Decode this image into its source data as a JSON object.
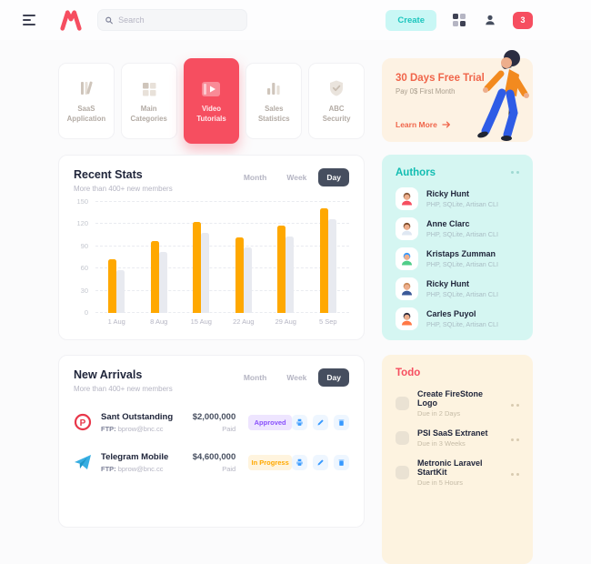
{
  "header": {
    "search_placeholder": "Search",
    "create_label": "Create",
    "notification_count": "3",
    "icons": [
      "hamburger-icon",
      "logo-m-icon",
      "search-icon",
      "grid-icon",
      "user-icon"
    ]
  },
  "categories": [
    {
      "label": "SaaS Application",
      "icon": "books-icon",
      "active": false
    },
    {
      "label": "Main Categories",
      "icon": "grid-tiles-icon",
      "active": false
    },
    {
      "label": "Video Tutorials",
      "icon": "video-icon",
      "active": true
    },
    {
      "label": "Sales Statistics",
      "icon": "bar-chart-icon",
      "active": false
    },
    {
      "label": "ABC Security",
      "icon": "shield-check-icon",
      "active": false
    }
  ],
  "trial_card": {
    "title": "30 Days Free Trial",
    "subtitle": "Pay 0$ First Month",
    "cta": "Learn More"
  },
  "recent_stats": {
    "title": "Recent Stats",
    "subtitle": "More than 400+ new members",
    "filters": [
      "Month",
      "Week",
      "Day"
    ],
    "active_filter": "Day"
  },
  "chart_data": {
    "type": "bar",
    "title": "Recent Stats",
    "categories": [
      "1 Aug",
      "8 Aug",
      "15 Aug",
      "22 Aug",
      "29 Aug",
      "5 Sep"
    ],
    "series": [
      {
        "name": "primary",
        "color": "#FFA800",
        "values": [
          72,
          97,
          123,
          102,
          118,
          142
        ]
      },
      {
        "name": "secondary",
        "color": "#E8EAF0",
        "values": [
          58,
          83,
          108,
          88,
          103,
          127
        ]
      }
    ],
    "ylim": [
      0,
      150
    ],
    "yticks": [
      0,
      30,
      60,
      90,
      120,
      150
    ],
    "grid": "dashed-horizontal",
    "legend": "none"
  },
  "authors": {
    "title": "Authors",
    "items": [
      {
        "name": "Ricky Hunt",
        "skills": "PHP, SQLite, Artisan CLI"
      },
      {
        "name": "Anne Clarc",
        "skills": "PHP, SQLite, Artisan CLI"
      },
      {
        "name": "Kristaps Zumman",
        "skills": "PHP, SQLite, Artisan CLI"
      },
      {
        "name": "Ricky Hunt",
        "skills": "PHP, SQLite, Artisan CLI"
      },
      {
        "name": "Carles Puyol",
        "skills": "PHP, SQLite, Artisan CLI"
      }
    ]
  },
  "new_arrivals": {
    "title": "New Arrivals",
    "subtitle": "More than 400+ new members",
    "filters": [
      "Month",
      "Week",
      "Day"
    ],
    "active_filter": "Day",
    "action_icons": [
      "print-icon",
      "edit-icon",
      "delete-icon"
    ],
    "rows": [
      {
        "logo_icon": "p-logo-icon",
        "name": "Sant Outstanding",
        "ftp_label": "FTP:",
        "ftp_value": "bprow@bnc.cc",
        "amount": "$2,000,000",
        "amount_note": "Paid",
        "status": "Approved",
        "status_bg": "#EEE5FF",
        "status_text": "#8950FC"
      },
      {
        "logo_icon": "telegram-icon",
        "name": "Telegram Mobile",
        "ftp_label": "FTP:",
        "ftp_value": "bprow@bnc.cc",
        "amount": "$4,600,000",
        "amount_note": "Paid",
        "status": "In Progress",
        "status_bg": "#FFF4DE",
        "status_text": "#FFA800"
      }
    ]
  },
  "todo": {
    "title": "Todo",
    "items": [
      {
        "title": "Create FireStone Logo",
        "due": "Due in 2 Days"
      },
      {
        "title": "PSI SaaS Extranet",
        "due": "Due in 3 Weeks"
      },
      {
        "title": "Metronic Laravel StartKit",
        "due": "Due in 5 Hours"
      }
    ]
  },
  "colors": {
    "accent_red": "#F64E60",
    "accent_teal": "#1BC5BD",
    "accent_orange": "#FFA800",
    "accent_purple": "#8950FC",
    "accent_blue": "#3699FF",
    "dark_pill": "#464E5F",
    "authors_bg": "#D5F6F2",
    "todo_bg": "#FDF3E0",
    "trial_bg": "#FDF2E3"
  }
}
